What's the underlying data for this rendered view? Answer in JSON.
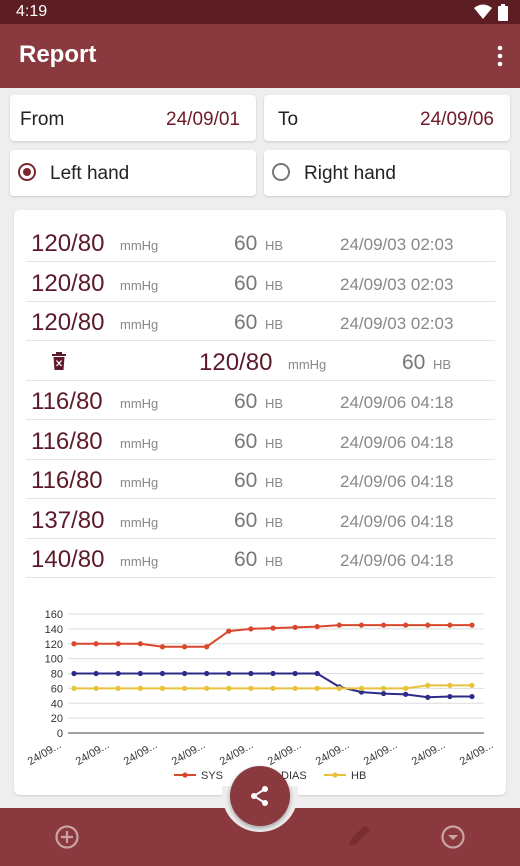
{
  "status_bar": {
    "time": "4:19",
    "icons": [
      "wifi-icon",
      "battery-icon"
    ]
  },
  "app_bar": {
    "title": "Report",
    "menu_icon": "more-vert-icon"
  },
  "filters": {
    "from": {
      "label": "From",
      "value": "24/09/01"
    },
    "to": {
      "label": "To",
      "value": "24/09/06"
    },
    "hands": [
      {
        "label": "Left hand",
        "selected": true
      },
      {
        "label": "Right hand",
        "selected": false
      }
    ]
  },
  "units": {
    "pressure": "mmHg",
    "heart": "HB"
  },
  "readings": [
    {
      "sys": "120",
      "dias": "80",
      "hb": "60",
      "datetime": "24/09/03 02:03"
    },
    {
      "sys": "120",
      "dias": "80",
      "hb": "60",
      "datetime": "24/09/03 02:03"
    },
    {
      "sys": "120",
      "dias": "80",
      "hb": "60",
      "datetime": "24/09/03 02:03"
    },
    {
      "sys": "120",
      "dias": "80",
      "hb": "60",
      "datetime": "",
      "swiped": true
    },
    {
      "sys": "116",
      "dias": "80",
      "hb": "60",
      "datetime": "24/09/06 04:18"
    },
    {
      "sys": "116",
      "dias": "80",
      "hb": "60",
      "datetime": "24/09/06 04:18"
    },
    {
      "sys": "116",
      "dias": "80",
      "hb": "60",
      "datetime": "24/09/06 04:18"
    },
    {
      "sys": "137",
      "dias": "80",
      "hb": "60",
      "datetime": "24/09/06 04:18"
    },
    {
      "sys": "140",
      "dias": "80",
      "hb": "60",
      "datetime": "24/09/06 04:18"
    }
  ],
  "chart_data": {
    "type": "line",
    "x_tick_labels": [
      "24/09...",
      "24/09...",
      "24/09...",
      "24/09...",
      "24/09...",
      "24/09...",
      "24/09...",
      "24/09...",
      "24/09...",
      "24/09..."
    ],
    "ylim": [
      0,
      160
    ],
    "y_ticks": [
      0,
      20,
      40,
      60,
      80,
      100,
      120,
      140,
      160
    ],
    "grid": true,
    "legend_position": "bottom",
    "series": [
      {
        "name": "SYS",
        "color": "#d9472c",
        "values": [
          120,
          120,
          120,
          120,
          116,
          116,
          116,
          137,
          140,
          141,
          142,
          143,
          145,
          145,
          145,
          145,
          145,
          145,
          145
        ]
      },
      {
        "name": "DIAS",
        "color": "#2d2a8a",
        "values": [
          80,
          80,
          80,
          80,
          80,
          80,
          80,
          80,
          80,
          80,
          80,
          80,
          62,
          55,
          53,
          52,
          48,
          49,
          49
        ]
      },
      {
        "name": "HB",
        "color": "#e8c23a",
        "values": [
          60,
          60,
          60,
          60,
          60,
          60,
          60,
          60,
          60,
          60,
          60,
          60,
          60,
          60,
          60,
          60,
          64,
          64,
          64
        ]
      }
    ]
  },
  "bottom_nav": {
    "left_icon": "add-circle-icon",
    "center_icon": "edit-pen-icon",
    "right_icon": "chevron-down-circle-icon",
    "fab_icon": "share-icon"
  }
}
